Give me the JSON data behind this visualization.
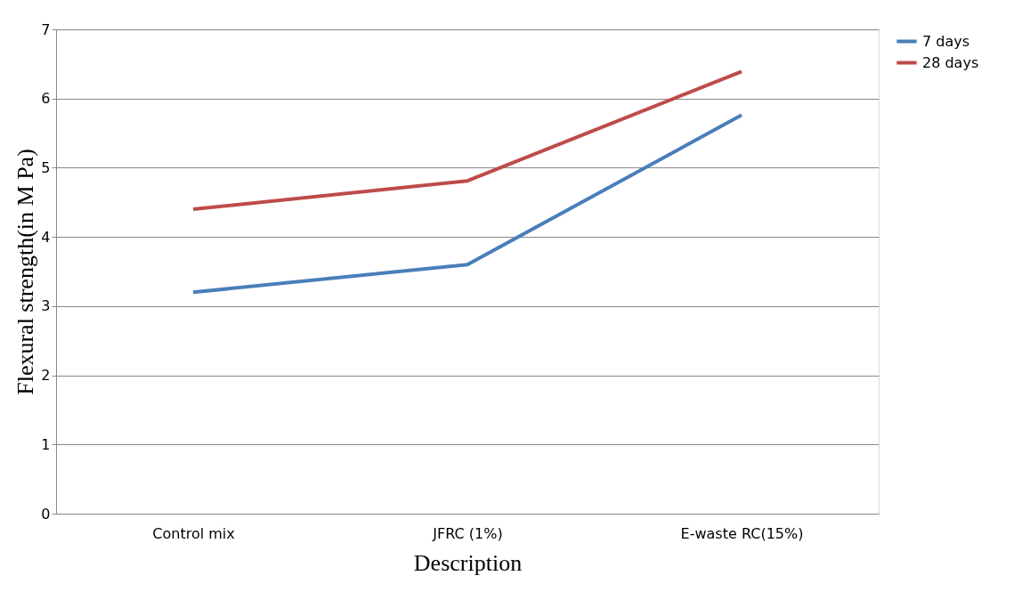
{
  "chart_data": {
    "type": "line",
    "xlabel": "Description",
    "ylabel": "Flexural strength(in M Pa)",
    "categories": [
      "Control mix",
      "JFRC (1%)",
      "E-waste RC(15%)"
    ],
    "series": [
      {
        "name": "7 days",
        "color": "#4a7ebb",
        "values": [
          3.2,
          3.6,
          5.76
        ]
      },
      {
        "name": "28 days",
        "color": "#be4b48",
        "values": [
          4.4,
          4.81,
          6.39
        ]
      }
    ],
    "ylim": [
      0,
      7
    ],
    "yticks": [
      0,
      1,
      2,
      3,
      4,
      5,
      6,
      7
    ],
    "grid": "y",
    "legend": "right",
    "marker": "none",
    "line_style": "solid"
  }
}
